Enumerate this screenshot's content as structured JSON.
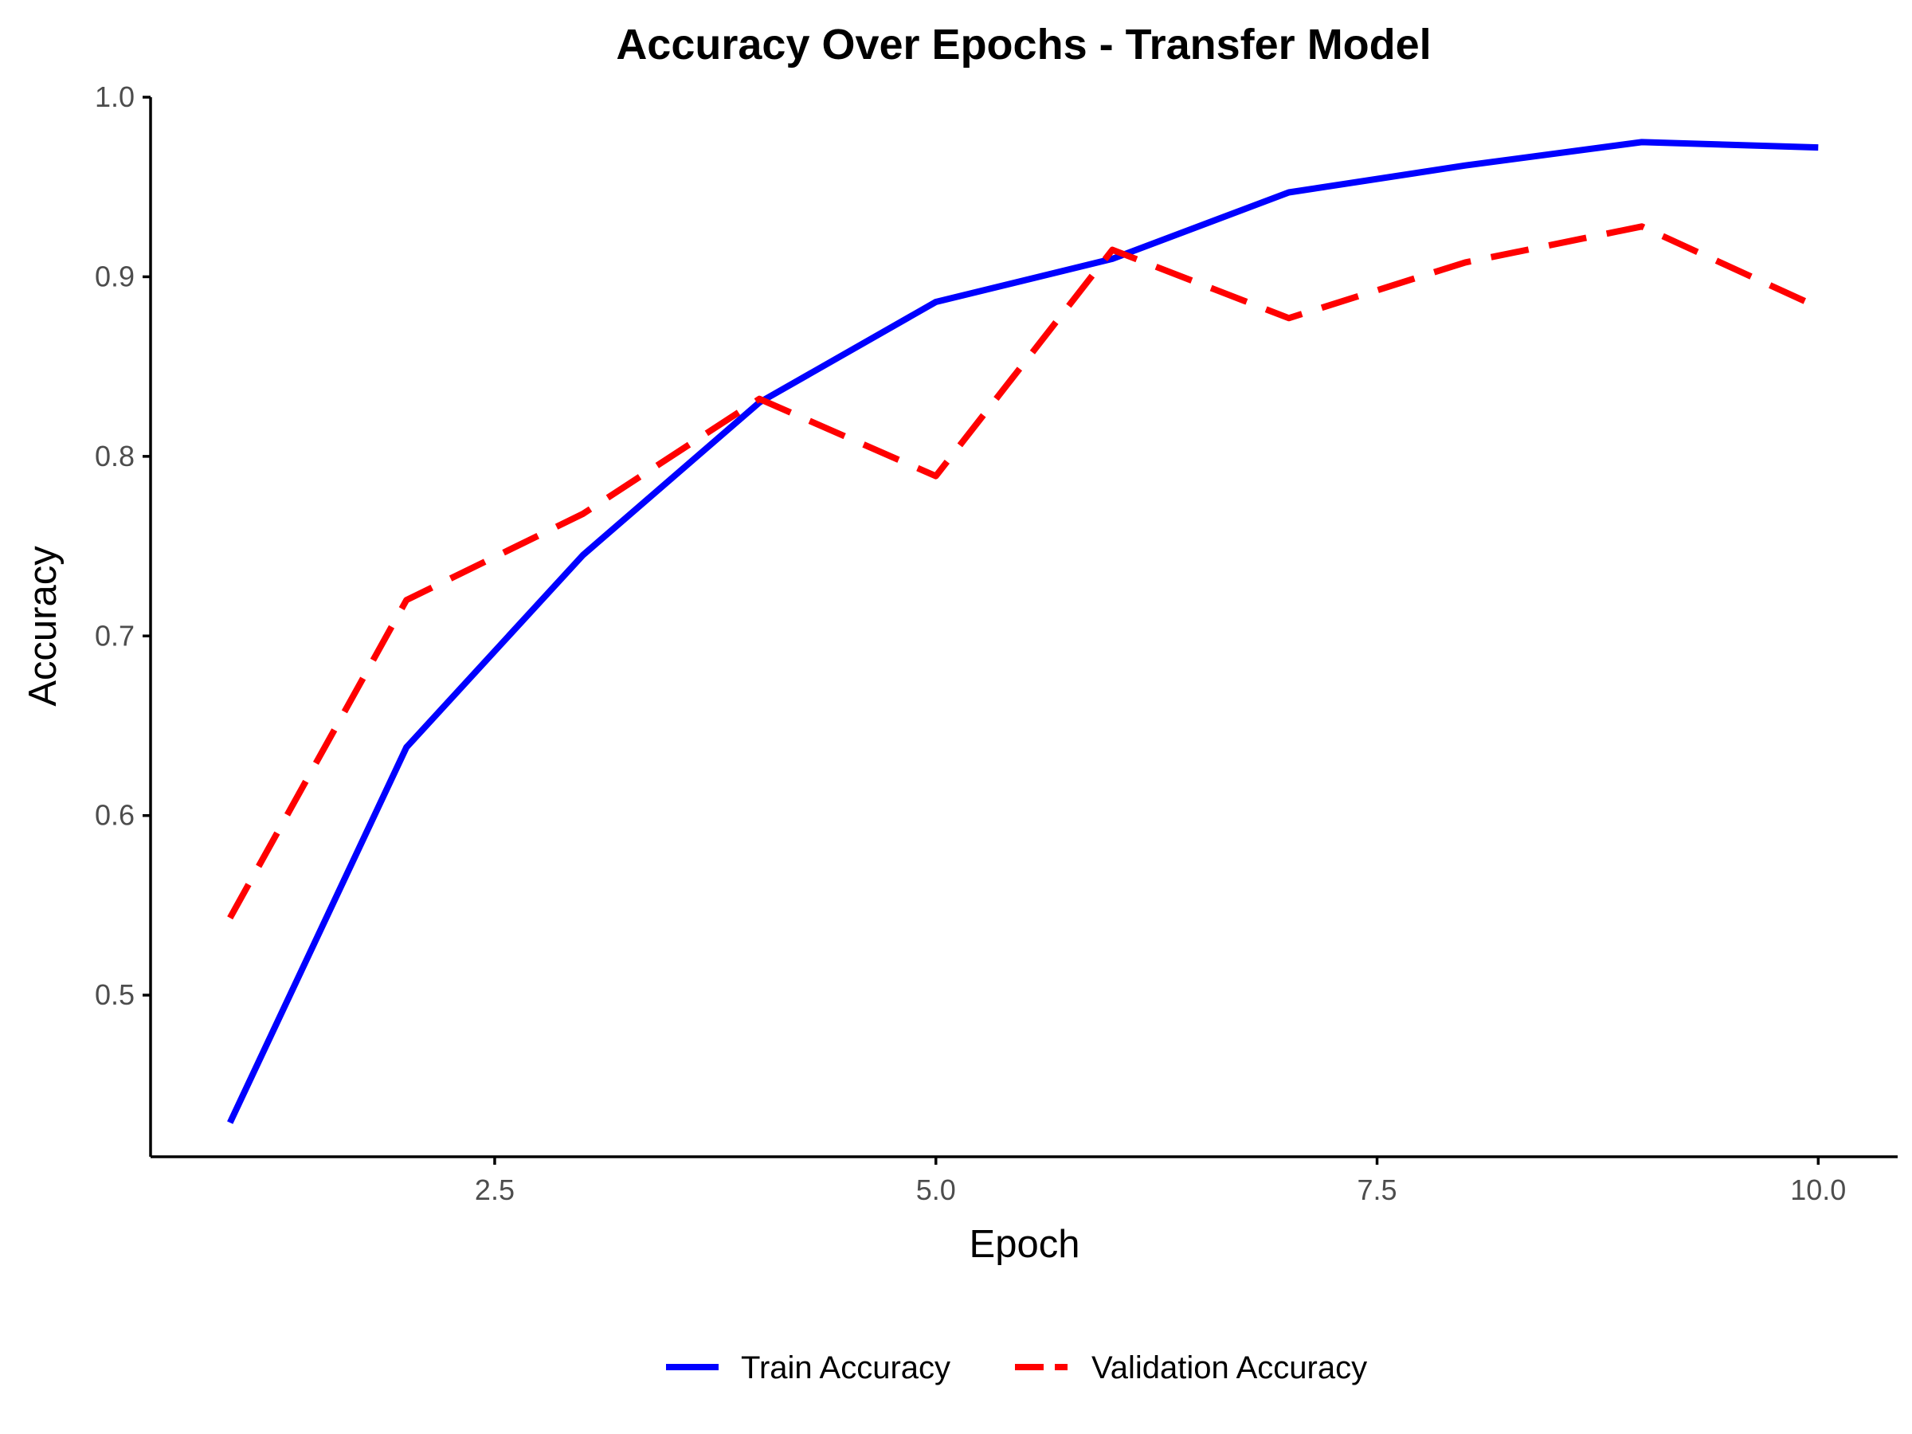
{
  "chart_data": {
    "type": "line",
    "title": "Accuracy Over Epochs - Transfer Model",
    "xlabel": "Epoch",
    "ylabel": "Accuracy",
    "xlim": [
      0.55,
      10.45
    ],
    "ylim": [
      0.41,
      1.0
    ],
    "xticks": [
      2.5,
      5.0,
      7.5,
      10.0
    ],
    "xtick_labels": [
      "2.5",
      "5.0",
      "7.5",
      "10.0"
    ],
    "yticks": [
      0.5,
      0.6,
      0.7,
      0.8,
      0.9,
      1.0
    ],
    "ytick_labels": [
      "0.5",
      "0.6",
      "0.7",
      "0.8",
      "0.9",
      "1.0"
    ],
    "grid": false,
    "legend_position": "bottom",
    "x": [
      1,
      2,
      3,
      4,
      5,
      6,
      7,
      8,
      9,
      10
    ],
    "series": [
      {
        "name": "Train Accuracy",
        "color": "#0000ff",
        "dash": "solid",
        "values": [
          0.429,
          0.638,
          0.745,
          0.83,
          0.886,
          0.91,
          0.947,
          0.962,
          0.975,
          0.972
        ]
      },
      {
        "name": "Validation Accuracy",
        "color": "#ff0000",
        "dash": "dashed",
        "values": [
          0.543,
          0.72,
          0.768,
          0.832,
          0.789,
          0.915,
          0.877,
          0.908,
          0.928,
          0.883
        ]
      }
    ]
  }
}
